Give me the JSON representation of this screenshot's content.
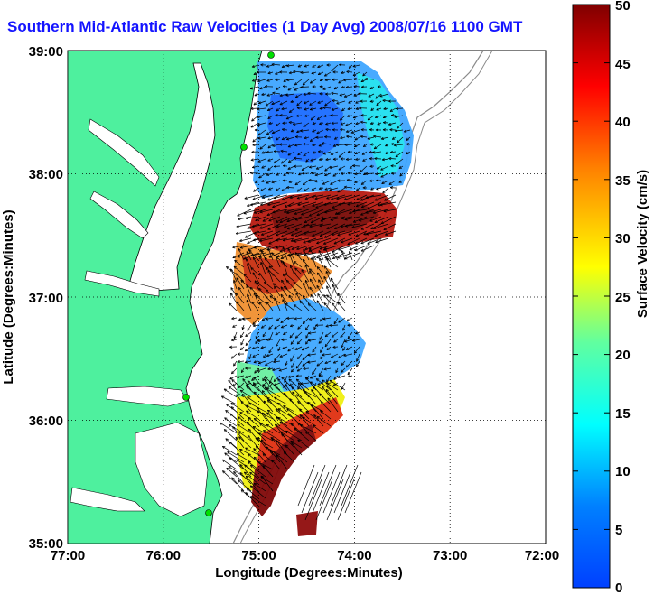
{
  "title": "Southern Mid-Atlantic Raw Velocities (1 Day Avg) 2008/07/16 1100 GMT",
  "map": {
    "x_axis_label": "Longitude (Degrees:Minutes)",
    "y_axis_label": "Latitude (Degrees:Minutes)",
    "x_ticks": [
      "77:00",
      "76:00",
      "75:00",
      "74:00",
      "73:00",
      "72:00"
    ],
    "y_ticks": [
      "39:00",
      "38:00",
      "37:00",
      "36:00",
      "35:00"
    ],
    "lon_range_west": [
      77,
      72
    ],
    "lat_range": [
      35,
      39
    ],
    "grid": true,
    "colors": {
      "land": "#4ef09e",
      "coastline": "#000000",
      "bathymetry": "#8a8a8a",
      "station_marker": "#00e000",
      "vectors": "#000000"
    }
  },
  "colorbar": {
    "label": "Surface Velocity (cm/s)",
    "min": 0,
    "max": 50,
    "ticks": [
      "0",
      "5",
      "10",
      "15",
      "20",
      "25",
      "30",
      "35",
      "40",
      "45",
      "50"
    ],
    "colormap": "jet"
  }
}
